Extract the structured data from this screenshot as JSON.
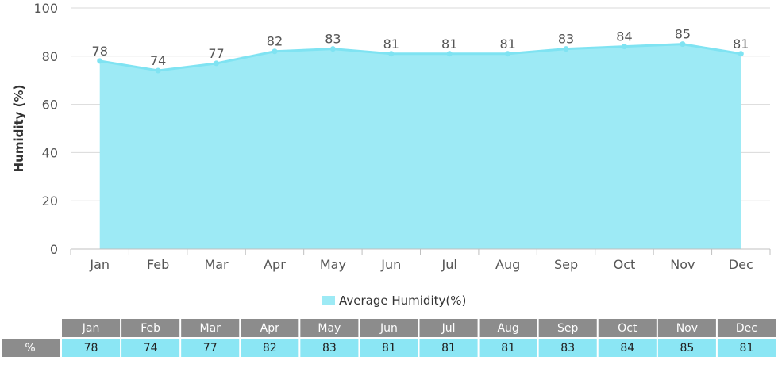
{
  "colors": {
    "area_fill": "#9deaf5",
    "line": "#7fe3f2",
    "grid": "#d9d9d9",
    "header_bg": "#8c8c8c",
    "row_label_bg": "#8c8c8c",
    "value_bg": "#8be6f4"
  },
  "chart_data": {
    "type": "area",
    "ylabel": "Humidity (%)",
    "xlabel": "",
    "title": "",
    "ylim": [
      0,
      100
    ],
    "yticks": [
      0,
      20,
      40,
      60,
      80,
      100
    ],
    "grid": "horizontal",
    "legend_position": "bottom-center",
    "categories": [
      "Jan",
      "Feb",
      "Mar",
      "Apr",
      "May",
      "Jun",
      "Jul",
      "Aug",
      "Sep",
      "Oct",
      "Nov",
      "Dec"
    ],
    "series": [
      {
        "name": "Average Humidity(%)",
        "values": [
          78,
          74,
          77,
          82,
          83,
          81,
          81,
          81,
          83,
          84,
          85,
          81
        ]
      }
    ]
  },
  "table": {
    "row_label": "%"
  }
}
